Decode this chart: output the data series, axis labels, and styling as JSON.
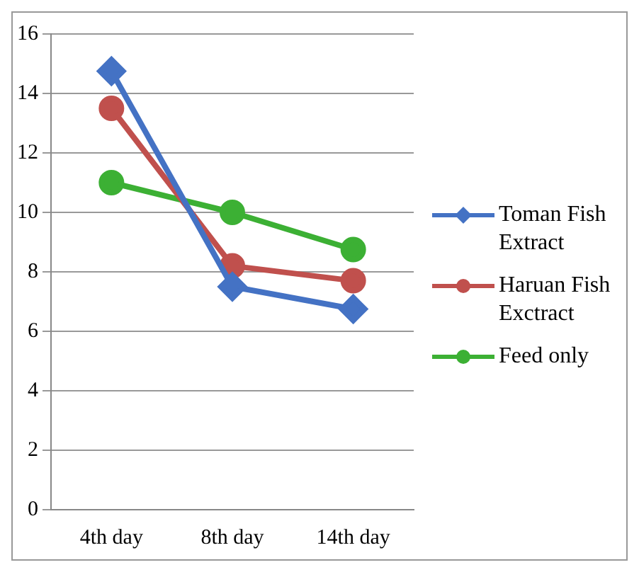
{
  "chart_data": {
    "type": "line",
    "categories": [
      "4th day",
      "8th day",
      "14th day"
    ],
    "series": [
      {
        "name": "Toman Fish Extract",
        "color": "#4472c4",
        "marker": "diamond",
        "values": [
          14.75,
          7.5,
          6.75
        ]
      },
      {
        "name": "Haruan Fish Exctract",
        "color": "#c0504d",
        "marker": "circle",
        "values": [
          13.5,
          8.2,
          7.7
        ]
      },
      {
        "name": "Feed only",
        "color": "#3cb034",
        "marker": "circle",
        "values": [
          11,
          10,
          8.75
        ]
      }
    ],
    "ylim": [
      0,
      16
    ],
    "yticks": [
      0,
      2,
      4,
      6,
      8,
      10,
      12,
      14,
      16
    ],
    "grid": "y",
    "legend": "right"
  }
}
